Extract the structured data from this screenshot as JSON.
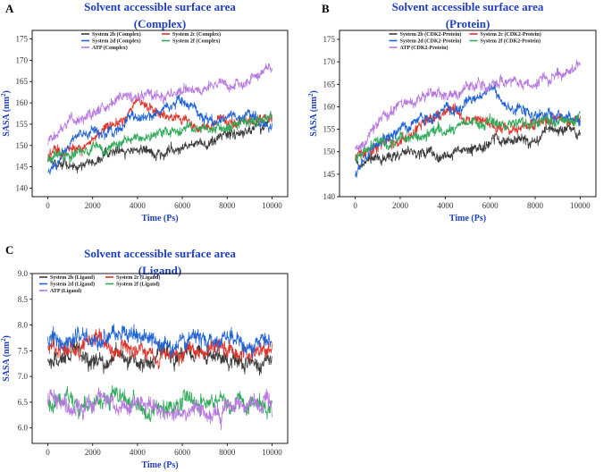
{
  "colors": {
    "title": "#1f3fbf",
    "axis_label": "#1f3fbf",
    "series": {
      "2b": "#3a3a3a",
      "2c": "#e0332a",
      "2d": "#1f63d6",
      "2f": "#2eaa58",
      "ATP": "#b779e0"
    }
  },
  "chart_data": [
    {
      "panel": "A",
      "type": "line",
      "title_line1": "Solvent accessible surface area",
      "title_line2": "(Complex)",
      "xlabel": "Time (Ps)",
      "ylabel": "SASA (nm",
      "ylabel_sup": "2",
      "ylabel_end": ")",
      "xlim": [
        -700,
        10700
      ],
      "ylim": [
        138,
        177
      ],
      "xticks": [
        0,
        2000,
        4000,
        6000,
        8000,
        10000
      ],
      "yticks": [
        140,
        145,
        150,
        155,
        160,
        165,
        170,
        175
      ],
      "legend_position": "top-center",
      "series": [
        {
          "key": "2b",
          "name": "System 2b (Complex)",
          "x": [
            0,
            1000,
            2000,
            3000,
            4000,
            5000,
            6000,
            7000,
            8000,
            9000,
            10000
          ],
          "values": [
            146,
            146,
            147,
            148,
            147,
            148,
            149,
            151,
            152,
            154,
            156
          ]
        },
        {
          "key": "2c",
          "name": "System 2c (Complex)",
          "x": [
            0,
            1000,
            2000,
            3000,
            4000,
            5000,
            6000,
            7000,
            8000,
            9000,
            10000
          ],
          "values": [
            147,
            149,
            151,
            154,
            161,
            157,
            155,
            155,
            156,
            156,
            156
          ]
        },
        {
          "key": "2d",
          "name": "System 2d (Complex)",
          "x": [
            0,
            1000,
            2000,
            3000,
            4000,
            5000,
            6000,
            7000,
            8000,
            9000,
            10000
          ],
          "values": [
            143,
            150,
            152,
            154,
            157,
            159,
            161,
            157,
            157,
            157,
            155
          ]
        },
        {
          "key": "2f",
          "name": "System 2f (Complex)",
          "x": [
            0,
            1000,
            2000,
            3000,
            4000,
            5000,
            6000,
            7000,
            8000,
            9000,
            10000
          ],
          "values": [
            147,
            149,
            150,
            151,
            152,
            153,
            153,
            154,
            154,
            155,
            156
          ]
        },
        {
          "key": "ATP",
          "name": "ATP (Complex)",
          "x": [
            0,
            1000,
            2000,
            3000,
            4000,
            5000,
            6000,
            7000,
            8000,
            9000,
            10000
          ],
          "values": [
            150,
            155,
            158,
            160,
            162,
            161,
            163,
            164,
            164,
            165,
            167
          ]
        }
      ]
    },
    {
      "panel": "B",
      "type": "line",
      "title_line1": "Solvent accessible surface area",
      "title_line2": "(Protein)",
      "xlabel": "Time (Ps)",
      "ylabel": "SASA (nm",
      "ylabel_sup": "2",
      "ylabel_end": ")",
      "xlim": [
        -700,
        10700
      ],
      "ylim": [
        140,
        177
      ],
      "xticks": [
        0,
        2000,
        4000,
        6000,
        8000,
        10000
      ],
      "yticks": [
        140,
        145,
        150,
        155,
        160,
        165,
        170,
        175
      ],
      "legend_position": "top-center",
      "series": [
        {
          "key": "2b",
          "name": "System 2b (CDK2-Protein)",
          "x": [
            0,
            1000,
            2000,
            3000,
            4000,
            5000,
            6000,
            7000,
            8000,
            9000,
            10000
          ],
          "values": [
            148,
            149,
            150,
            151,
            150,
            151,
            151,
            152,
            153,
            154,
            156
          ]
        },
        {
          "key": "2c",
          "name": "System 2c (CDK2-Protein)",
          "x": [
            0,
            1000,
            2000,
            3000,
            4000,
            5000,
            6000,
            7000,
            8000,
            9000,
            10000
          ],
          "values": [
            149,
            152,
            154,
            156,
            160,
            158,
            157,
            156,
            157,
            157,
            157
          ]
        },
        {
          "key": "2d",
          "name": "System 2d (CDK2-Protein)",
          "x": [
            0,
            1000,
            2000,
            3000,
            4000,
            5000,
            6000,
            7000,
            8000,
            9000,
            10000
          ],
          "values": [
            145,
            153,
            155,
            157,
            159,
            161,
            164,
            159,
            159,
            158,
            157
          ]
        },
        {
          "key": "2f",
          "name": "System 2f (CDK2-Protein)",
          "x": [
            0,
            1000,
            2000,
            3000,
            4000,
            5000,
            6000,
            7000,
            8000,
            9000,
            10000
          ],
          "values": [
            149,
            152,
            153,
            154,
            155,
            155,
            156,
            156,
            157,
            157,
            158
          ]
        },
        {
          "key": "ATP",
          "name": "ATP (CDK2-Protein)",
          "x": [
            0,
            1000,
            2000,
            3000,
            4000,
            5000,
            6000,
            7000,
            8000,
            9000,
            10000
          ],
          "values": [
            151,
            157,
            160,
            161,
            163,
            164,
            165,
            166,
            166,
            167,
            168
          ]
        }
      ]
    },
    {
      "panel": "C",
      "type": "line",
      "title_line1": "Solvent accessible surface area",
      "title_line2": "(Ligand)",
      "xlabel": "Time (Ps)",
      "ylabel": "SASA (nm",
      "ylabel_sup": "2",
      "ylabel_end": ")",
      "xlim": [
        -700,
        10700
      ],
      "ylim": [
        5.7,
        9.0
      ],
      "xticks": [
        0,
        2000,
        4000,
        6000,
        8000,
        10000
      ],
      "yticks": [
        6.0,
        6.5,
        7.0,
        7.5,
        8.0,
        8.5,
        9.0
      ],
      "legend_position": "top-left",
      "series": [
        {
          "key": "2b",
          "name": "System 2b (Ligand)",
          "x": [
            0,
            2000,
            4000,
            6000,
            8000,
            10000
          ],
          "values": [
            7.35,
            7.35,
            7.35,
            7.35,
            7.35,
            7.35
          ]
        },
        {
          "key": "2c",
          "name": "System 2c (Ligand)",
          "x": [
            0,
            2000,
            4000,
            6000,
            8000,
            10000
          ],
          "values": [
            7.55,
            7.55,
            7.55,
            7.55,
            7.55,
            7.55
          ]
        },
        {
          "key": "2d",
          "name": "System 2d (Ligand)",
          "x": [
            0,
            2000,
            4000,
            6000,
            8000,
            10000
          ],
          "values": [
            7.7,
            7.7,
            7.7,
            7.7,
            7.7,
            7.7
          ]
        },
        {
          "key": "2f",
          "name": "System 2f (Ligand)",
          "x": [
            0,
            2000,
            4000,
            6000,
            8000,
            10000
          ],
          "values": [
            6.5,
            6.5,
            6.5,
            6.5,
            6.5,
            6.5
          ]
        },
        {
          "key": "ATP",
          "name": "ATP (Ligand)",
          "x": [
            0,
            2000,
            4000,
            6000,
            8000,
            10000
          ],
          "values": [
            6.55,
            6.5,
            6.45,
            6.4,
            6.35,
            6.35
          ]
        }
      ]
    }
  ]
}
